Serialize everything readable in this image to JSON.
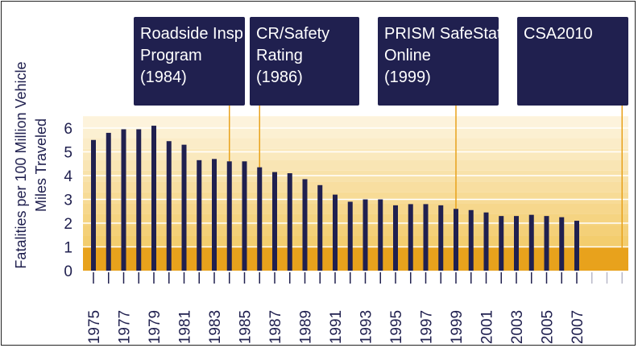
{
  "chart_data": {
    "type": "bar",
    "ylabel_lines": [
      "Fatalities per 100 Million Vehicle",
      "Miles Traveled"
    ],
    "ylim": [
      0,
      6.5
    ],
    "yticks": [
      0,
      1,
      2,
      3,
      4,
      5,
      6
    ],
    "categories": [
      1975,
      1976,
      1977,
      1978,
      1979,
      1980,
      1981,
      1982,
      1983,
      1984,
      1985,
      1986,
      1987,
      1988,
      1989,
      1990,
      1991,
      1992,
      1993,
      1994,
      1995,
      1996,
      1997,
      1998,
      1999,
      2000,
      2001,
      2002,
      2003,
      2004,
      2005,
      2006,
      2007
    ],
    "values": [
      5.5,
      5.8,
      5.95,
      5.95,
      6.1,
      5.45,
      5.3,
      4.65,
      4.7,
      4.6,
      4.6,
      4.35,
      4.15,
      4.1,
      3.85,
      3.6,
      3.2,
      2.9,
      3.0,
      3.0,
      2.75,
      2.8,
      2.8,
      2.75,
      2.6,
      2.55,
      2.45,
      2.3,
      2.3,
      2.35,
      2.3,
      2.25,
      2.1
    ],
    "xtick_labels": [
      "1975",
      "1977",
      "1979",
      "1981",
      "1983",
      "1985",
      "1987",
      "1989",
      "1991",
      "1993",
      "1995",
      "1997",
      "1999",
      "2001",
      "2003",
      "2005",
      "2007"
    ],
    "extra_slots": 3,
    "annotations": [
      {
        "lines": [
          "Roadside Insp",
          "Program",
          "(1984)"
        ],
        "year": 1984
      },
      {
        "lines": [
          "CR/Safety",
          "Rating",
          "(1986)"
        ],
        "year": 1986
      },
      {
        "lines": [
          "PRISM SafeStat",
          "Online",
          "(1999)"
        ],
        "year": 1999
      },
      {
        "lines": [
          "CSA2010"
        ],
        "year": 2010
      }
    ],
    "colors": {
      "bar": "#20204f",
      "band_light": "#fdf3dc",
      "band_dark": "#e8a21c",
      "leader": "#e8a21c",
      "axis_text": "#20204f"
    }
  }
}
